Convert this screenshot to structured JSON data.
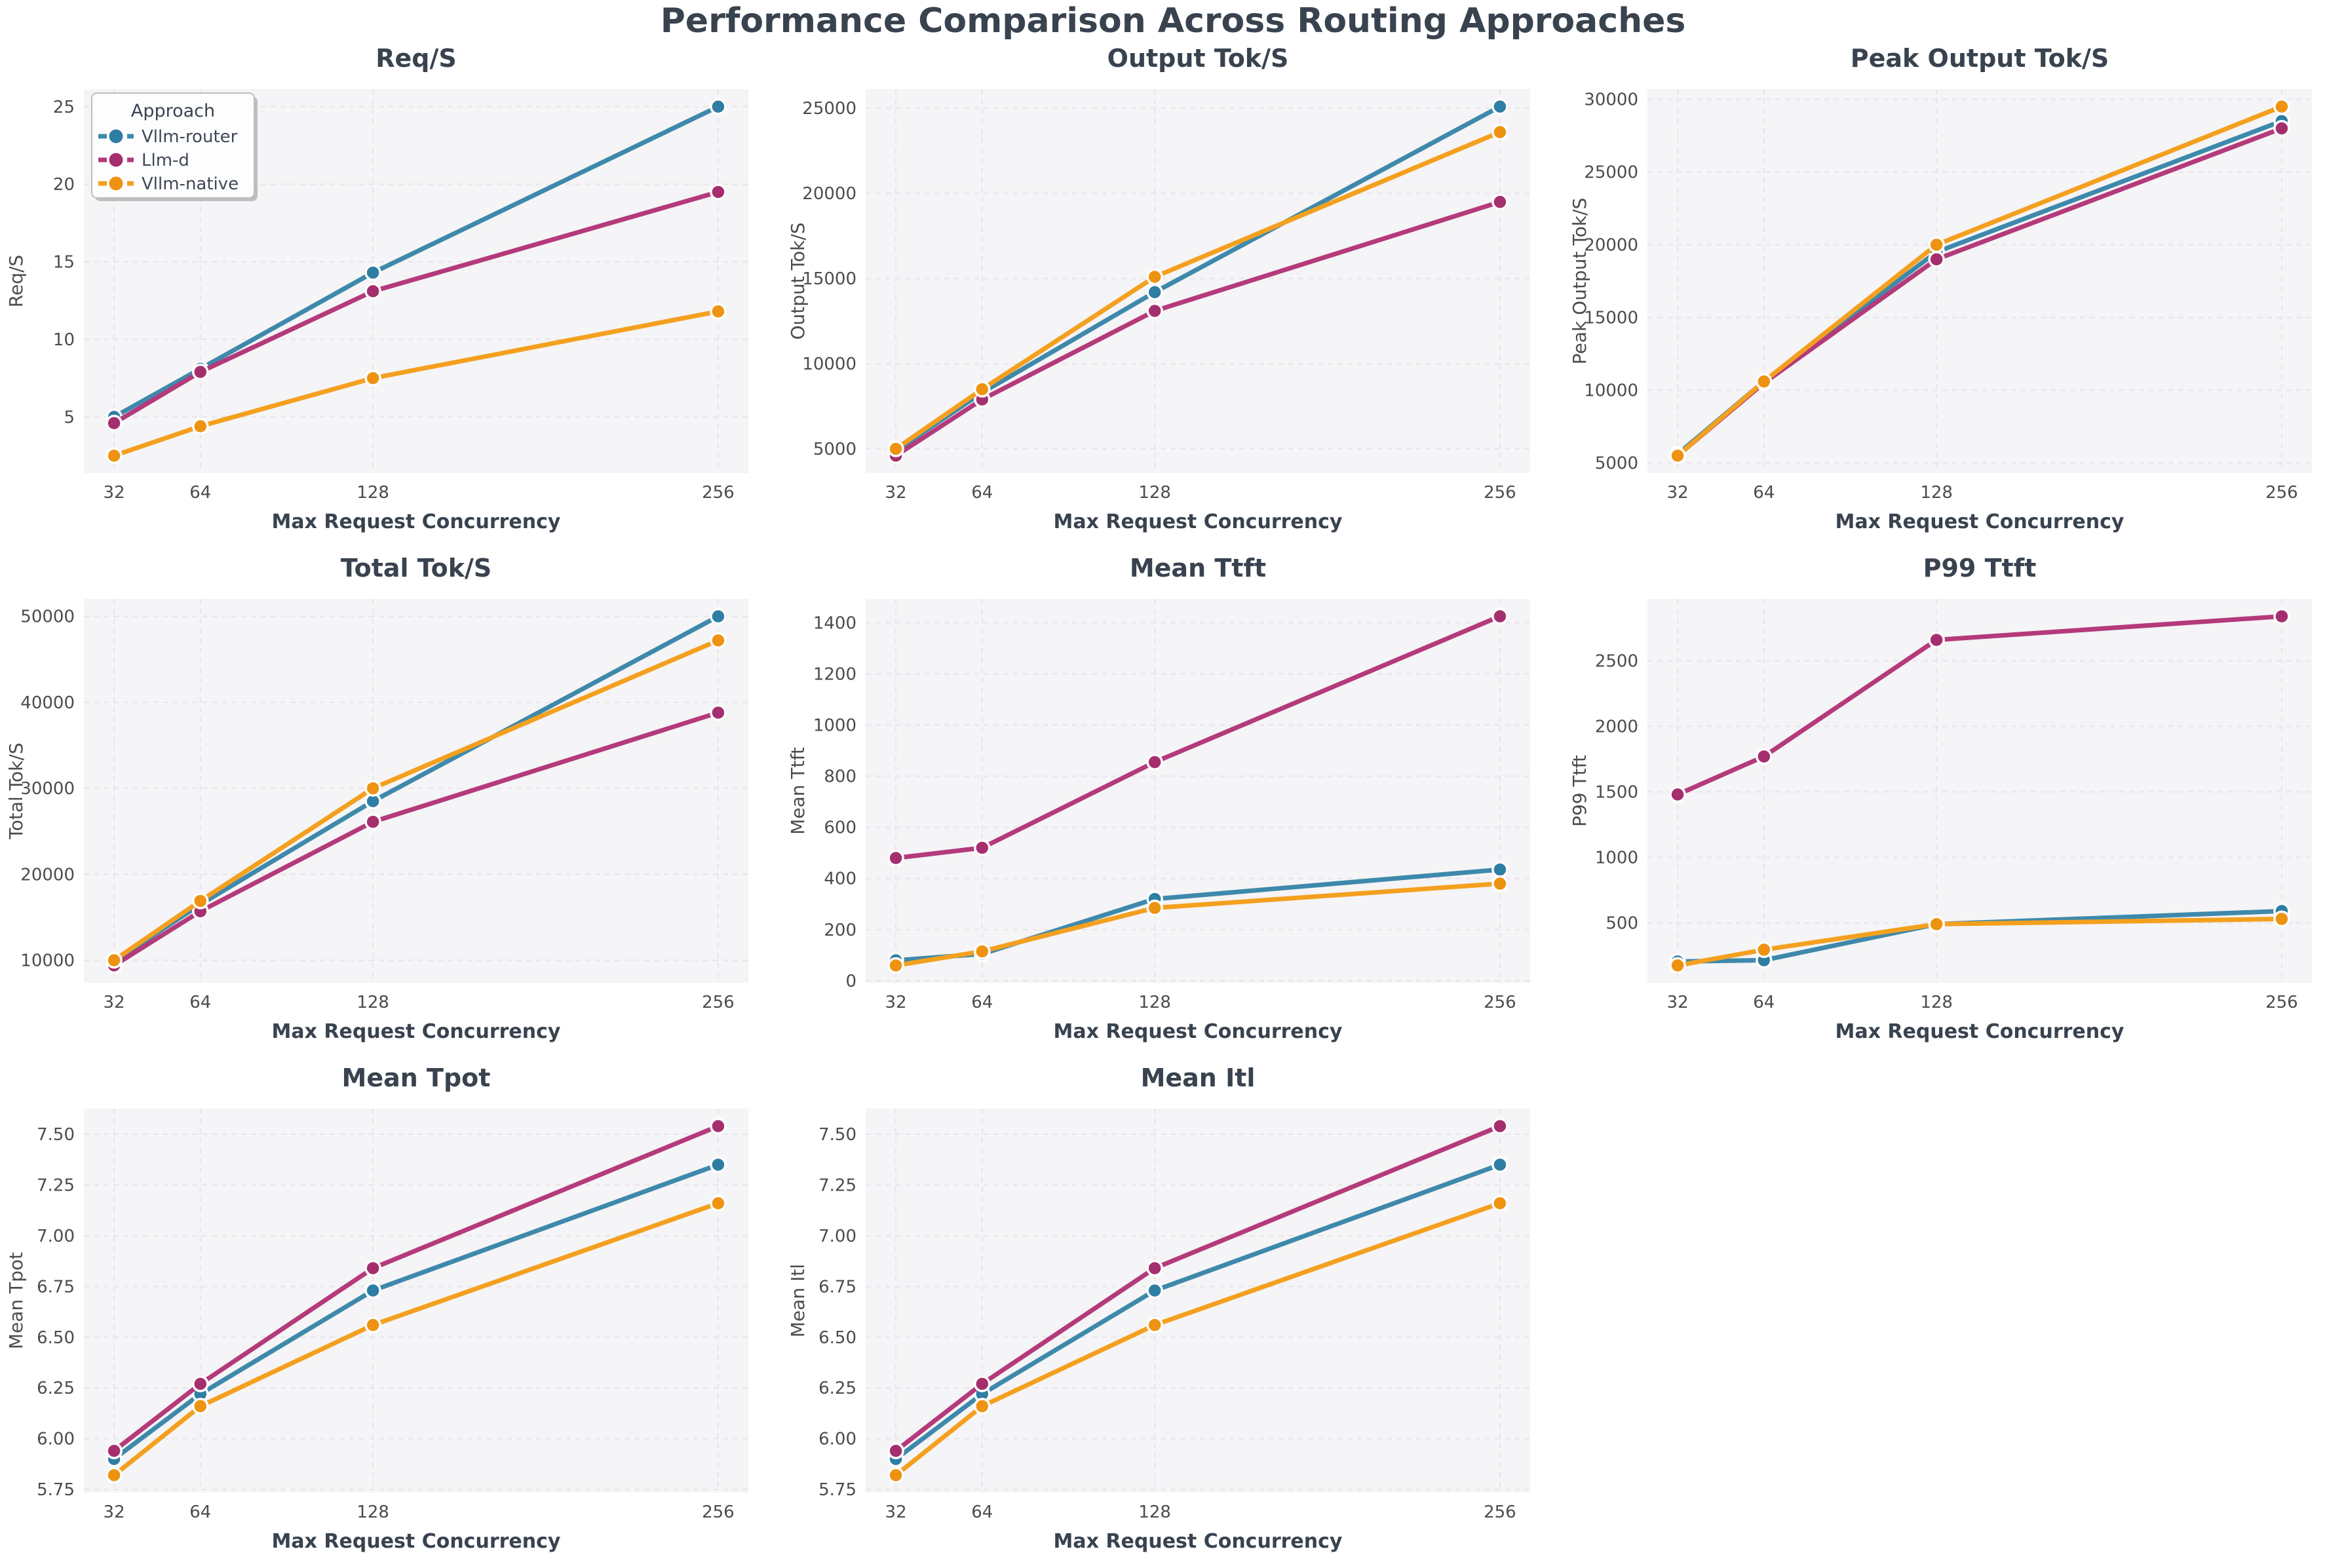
{
  "page_title": "Performance Comparison Across Routing Approaches",
  "legend": {
    "title": "Approach",
    "entries": [
      "Vllm-router",
      "Llm-d",
      "Vllm-native"
    ]
  },
  "palette": {
    "Vllm-router": {
      "line": "#3e89ab",
      "marker": "#2e7ea3"
    },
    "Llm-d": {
      "line": "#b43a7b",
      "marker": "#a52f6e"
    },
    "Vllm-native": {
      "line": "#f4a01f",
      "marker": "#ee9311"
    }
  },
  "style_colors": {
    "heading": "#39434f",
    "tick": "#4c4c4c",
    "axes_background": "#f5f4f6",
    "grid": "#e8e5ea",
    "legend_background": "#fdfdfd",
    "legend_border": "#bdbdc4"
  },
  "x_axis": {
    "label": "Max Request Concurrency",
    "ticks": [
      32,
      64,
      128,
      256
    ],
    "xlim": [
      20.8,
      267.2
    ]
  },
  "chart_data": [
    {
      "type": "line",
      "slug": "req-s",
      "title": "Req/S",
      "xlabel": "Max Request Concurrency",
      "ylabel": "Req/S",
      "x": [
        32,
        64,
        128,
        256
      ],
      "series": [
        {
          "name": "Vllm-router",
          "values": [
            5.0,
            8.1,
            14.3,
            25.0
          ]
        },
        {
          "name": "Llm-d",
          "values": [
            4.6,
            7.9,
            13.1,
            19.5
          ]
        },
        {
          "name": "Vllm-native",
          "values": [
            2.5,
            4.4,
            7.5,
            11.8
          ]
        }
      ],
      "yticks": [
        5,
        10,
        15,
        20,
        25
      ],
      "ytick_decimals": 0,
      "ylim": [
        1.38,
        26.13
      ],
      "grid": true,
      "legend": true,
      "legend_position": "upper left"
    },
    {
      "type": "line",
      "slug": "output-tok-s",
      "title": "Output Tok/S",
      "xlabel": "Max Request Concurrency",
      "ylabel": "Output Tok/S",
      "x": [
        32,
        64,
        128,
        256
      ],
      "series": [
        {
          "name": "Vllm-router",
          "values": [
            4900,
            8300,
            14200,
            25100
          ]
        },
        {
          "name": "Llm-d",
          "values": [
            4600,
            7900,
            13100,
            19500
          ]
        },
        {
          "name": "Vllm-native",
          "values": [
            5000,
            8500,
            15100,
            23600
          ]
        }
      ],
      "yticks": [
        5000,
        10000,
        15000,
        20000,
        25000
      ],
      "ytick_decimals": 0,
      "ylim": [
        3575,
        26125
      ],
      "grid": true,
      "legend": false
    },
    {
      "type": "line",
      "slug": "peak-output-tok-s",
      "title": "Peak Output Tok/S",
      "xlabel": "Max Request Concurrency",
      "ylabel": "Peak Output Tok/S",
      "x": [
        32,
        64,
        128,
        256
      ],
      "series": [
        {
          "name": "Vllm-router",
          "values": [
            5600,
            10600,
            19500,
            28500
          ]
        },
        {
          "name": "Llm-d",
          "values": [
            5500,
            10500,
            19000,
            28000
          ]
        },
        {
          "name": "Vllm-native",
          "values": [
            5500,
            10600,
            20000,
            29500
          ]
        }
      ],
      "yticks": [
        5000,
        10000,
        15000,
        20000,
        25000,
        30000
      ],
      "ytick_decimals": 0,
      "ylim": [
        4300,
        30700
      ],
      "grid": true,
      "legend": false
    },
    {
      "type": "line",
      "slug": "total-tok-s",
      "title": "Total Tok/S",
      "xlabel": "Max Request Concurrency",
      "ylabel": "Total Tok/S",
      "x": [
        32,
        64,
        128,
        256
      ],
      "series": [
        {
          "name": "Vllm-router",
          "values": [
            9900,
            16500,
            28500,
            50000
          ]
        },
        {
          "name": "Llm-d",
          "values": [
            9400,
            15700,
            26100,
            38800
          ]
        },
        {
          "name": "Vllm-native",
          "values": [
            10000,
            16900,
            30000,
            47200
          ]
        }
      ],
      "yticks": [
        10000,
        20000,
        30000,
        40000,
        50000
      ],
      "ytick_decimals": 0,
      "ylim": [
        7370,
        52030
      ],
      "grid": true,
      "legend": false
    },
    {
      "type": "line",
      "slug": "mean-ttft",
      "title": "Mean Ttft",
      "xlabel": "Max Request Concurrency",
      "ylabel": "Mean Ttft",
      "x": [
        32,
        64,
        128,
        256
      ],
      "series": [
        {
          "name": "Vllm-router",
          "values": [
            80,
            105,
            320,
            435
          ]
        },
        {
          "name": "Llm-d",
          "values": [
            480,
            520,
            855,
            1425
          ]
        },
        {
          "name": "Vllm-native",
          "values": [
            60,
            115,
            285,
            380
          ]
        }
      ],
      "yticks": [
        0,
        200,
        400,
        600,
        800,
        1000,
        1200,
        1400
      ],
      "ytick_decimals": 0,
      "ylim": [
        -8,
        1493
      ],
      "grid": true,
      "legend": false
    },
    {
      "type": "line",
      "slug": "p99-ttft",
      "title": "P99 Ttft",
      "xlabel": "Max Request Concurrency",
      "ylabel": "P99 Ttft",
      "x": [
        32,
        64,
        128,
        256
      ],
      "series": [
        {
          "name": "Vllm-router",
          "values": [
            205,
            215,
            490,
            590
          ]
        },
        {
          "name": "Llm-d",
          "values": [
            1480,
            1770,
            2660,
            2840
          ]
        },
        {
          "name": "Vllm-native",
          "values": [
            175,
            295,
            490,
            530
          ]
        }
      ],
      "yticks": [
        500,
        1000,
        1500,
        2000,
        2500
      ],
      "ytick_decimals": 0,
      "ylim": [
        42,
        2973
      ],
      "grid": true,
      "legend": false
    },
    {
      "type": "line",
      "slug": "mean-tpot",
      "title": "Mean Tpot",
      "xlabel": "Max Request Concurrency",
      "ylabel": "Mean Tpot",
      "x": [
        32,
        64,
        128,
        256
      ],
      "series": [
        {
          "name": "Vllm-router",
          "values": [
            5.9,
            6.22,
            6.73,
            7.35
          ]
        },
        {
          "name": "Llm-d",
          "values": [
            5.94,
            6.27,
            6.84,
            7.54
          ]
        },
        {
          "name": "Vllm-native",
          "values": [
            5.82,
            6.16,
            6.56,
            7.16
          ]
        }
      ],
      "yticks": [
        5.75,
        6.0,
        6.25,
        6.5,
        6.75,
        7.0,
        7.25,
        7.5
      ],
      "ytick_decimals": 2,
      "ylim": [
        5.734,
        7.626
      ],
      "grid": true,
      "legend": false
    },
    {
      "type": "line",
      "slug": "mean-itl",
      "title": "Mean Itl",
      "xlabel": "Max Request Concurrency",
      "ylabel": "Mean Itl",
      "x": [
        32,
        64,
        128,
        256
      ],
      "series": [
        {
          "name": "Vllm-router",
          "values": [
            5.9,
            6.22,
            6.73,
            7.35
          ]
        },
        {
          "name": "Llm-d",
          "values": [
            5.94,
            6.27,
            6.84,
            7.54
          ]
        },
        {
          "name": "Vllm-native",
          "values": [
            5.82,
            6.16,
            6.56,
            7.16
          ]
        }
      ],
      "yticks": [
        5.75,
        6.0,
        6.25,
        6.5,
        6.75,
        7.0,
        7.25,
        7.5
      ],
      "ytick_decimals": 2,
      "ylim": [
        5.734,
        7.626
      ],
      "grid": true,
      "legend": false
    }
  ]
}
